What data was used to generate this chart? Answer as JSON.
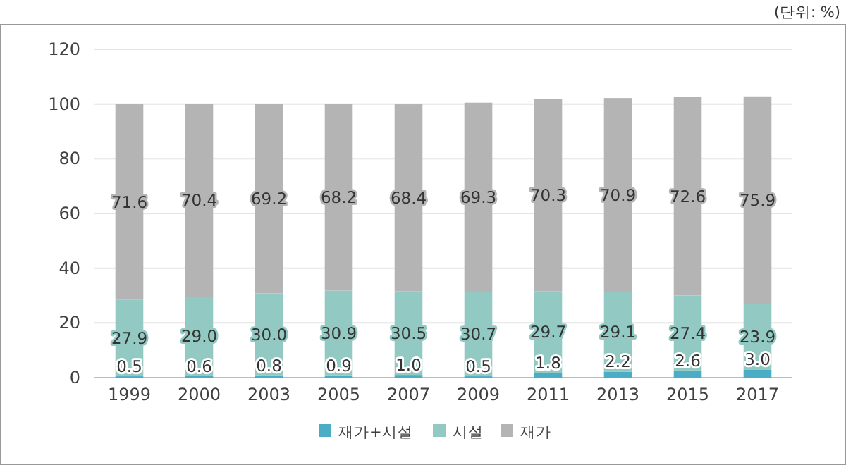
{
  "chart_data": {
    "type": "bar",
    "stacked": true,
    "annotations": [
      "(단위: %)"
    ],
    "categories": [
      "1999",
      "2000",
      "2003",
      "2005",
      "2007",
      "2009",
      "2011",
      "2013",
      "2015",
      "2017"
    ],
    "series": [
      {
        "name": "재가+시설",
        "color": "#4bacc6",
        "values": [
          0.5,
          0.6,
          0.8,
          0.9,
          1.0,
          0.5,
          1.8,
          2.2,
          2.6,
          3.0
        ],
        "value_labels": [
          "0.5",
          "0.6",
          "0.8",
          "0.9",
          "1.0",
          "0.5",
          "1.8",
          "2.2",
          "2.6",
          "3.0"
        ]
      },
      {
        "name": "시설",
        "color": "#93c9c3",
        "values": [
          27.9,
          29.0,
          30.0,
          30.9,
          30.5,
          30.7,
          29.7,
          29.1,
          27.4,
          23.9
        ],
        "value_labels": [
          "27.9",
          "29.0",
          "30.0",
          "30.9",
          "30.5",
          "30.7",
          "29.7",
          "29.1",
          "27.4",
          "23.9"
        ]
      },
      {
        "name": "재가",
        "color": "#b4b4b4",
        "values": [
          71.6,
          70.4,
          69.2,
          68.2,
          68.4,
          69.3,
          70.3,
          70.9,
          72.6,
          75.9
        ],
        "value_labels": [
          "71.6",
          "70.4",
          "69.2",
          "68.2",
          "68.4",
          "69.3",
          "70.3",
          "70.9",
          "72.6",
          "75.9"
        ]
      }
    ],
    "ylim": [
      0,
      120
    ],
    "yticks": [
      0,
      20,
      40,
      60,
      80,
      100,
      120
    ],
    "grid": "y",
    "legend": "bottom"
  }
}
